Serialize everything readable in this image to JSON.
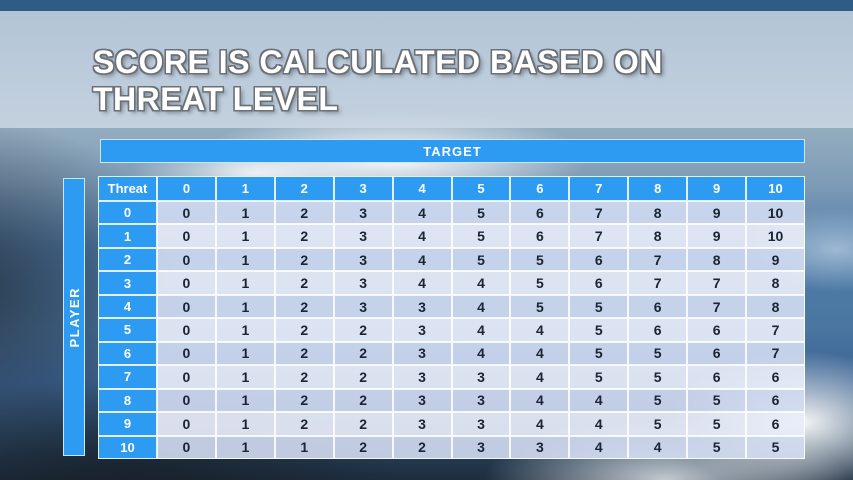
{
  "slide": {
    "title_line1": "SCORE IS CALCULATED BASED ON",
    "title_line2": "THREAT LEVEL"
  },
  "colors": {
    "accent_blue": "#2e9bf2",
    "top_bar_blue": "#2e5c84",
    "banner_gray_blue": "#cdd9e5",
    "row_band_dark": "#d1dbf2",
    "row_band_light": "#e8edf9",
    "value_text": "#1b2433",
    "header_text": "#ffffff"
  },
  "chart_data": {
    "type": "table",
    "title": "SCORE IS CALCULATED BASED ON THREAT LEVEL",
    "col_axis_label": "TARGET",
    "row_axis_label": "PLAYER",
    "corner_header": "Threat",
    "columns": [
      "0",
      "1",
      "2",
      "3",
      "4",
      "5",
      "6",
      "7",
      "8",
      "9",
      "10"
    ],
    "rows": [
      {
        "label": "0",
        "values": [
          0,
          1,
          2,
          3,
          4,
          5,
          6,
          7,
          8,
          9,
          10
        ]
      },
      {
        "label": "1",
        "values": [
          0,
          1,
          2,
          3,
          4,
          5,
          6,
          7,
          8,
          9,
          10
        ]
      },
      {
        "label": "2",
        "values": [
          0,
          1,
          2,
          3,
          4,
          5,
          5,
          6,
          7,
          8,
          9
        ]
      },
      {
        "label": "3",
        "values": [
          0,
          1,
          2,
          3,
          4,
          4,
          5,
          6,
          7,
          7,
          8
        ]
      },
      {
        "label": "4",
        "values": [
          0,
          1,
          2,
          3,
          3,
          4,
          5,
          5,
          6,
          7,
          8
        ]
      },
      {
        "label": "5",
        "values": [
          0,
          1,
          2,
          2,
          3,
          4,
          4,
          5,
          6,
          6,
          7
        ]
      },
      {
        "label": "6",
        "values": [
          0,
          1,
          2,
          2,
          3,
          4,
          4,
          5,
          5,
          6,
          7
        ]
      },
      {
        "label": "7",
        "values": [
          0,
          1,
          2,
          2,
          3,
          3,
          4,
          5,
          5,
          6,
          6
        ]
      },
      {
        "label": "8",
        "values": [
          0,
          1,
          2,
          2,
          3,
          3,
          4,
          4,
          5,
          5,
          6
        ]
      },
      {
        "label": "9",
        "values": [
          0,
          1,
          2,
          2,
          3,
          3,
          4,
          4,
          5,
          5,
          6
        ]
      },
      {
        "label": "10",
        "values": [
          0,
          1,
          1,
          2,
          2,
          3,
          3,
          4,
          4,
          5,
          5
        ]
      }
    ]
  }
}
